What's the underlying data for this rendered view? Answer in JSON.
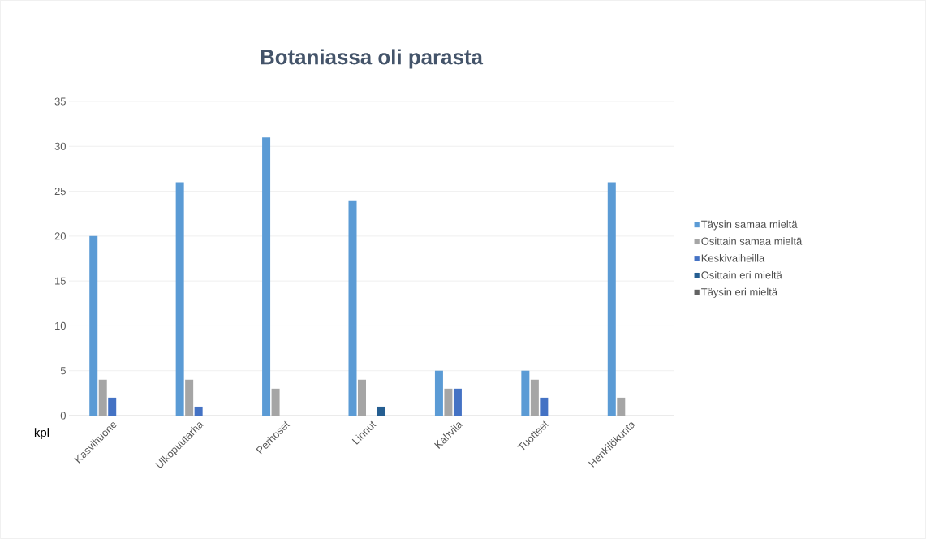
{
  "chart_data": {
    "type": "bar",
    "title": "Botaniassa oli parasta",
    "ylabel": "kpl",
    "categories": [
      "Kasvihuone",
      "Ulkopuutarha",
      "Perhoset",
      "Linnut",
      "Kahvila",
      "Tuotteet",
      "Henkilökunta"
    ],
    "series": [
      {
        "name": "Täysin samaa mieltä",
        "color": "#5b9bd5",
        "values": [
          20,
          26,
          31,
          24,
          5,
          5,
          26
        ]
      },
      {
        "name": "Osittain samaa mieltä",
        "color": "#a5a5a5",
        "values": [
          4,
          4,
          3,
          4,
          3,
          4,
          2
        ]
      },
      {
        "name": "Keskivaiheilla",
        "color": "#4472c4",
        "values": [
          2,
          1,
          0,
          0,
          3,
          2,
          0
        ]
      },
      {
        "name": "Osittain eri mieltä",
        "color": "#255e91",
        "values": [
          0,
          0,
          0,
          1,
          0,
          0,
          0
        ]
      },
      {
        "name": "Täysin eri mieltä",
        "color": "#636363",
        "values": [
          0,
          0,
          0,
          0,
          0,
          0,
          0
        ]
      }
    ],
    "ylim": [
      0,
      35
    ],
    "yticks": [
      0,
      5,
      10,
      15,
      20,
      25,
      30,
      35
    ],
    "grid": "y",
    "legend": "right"
  }
}
